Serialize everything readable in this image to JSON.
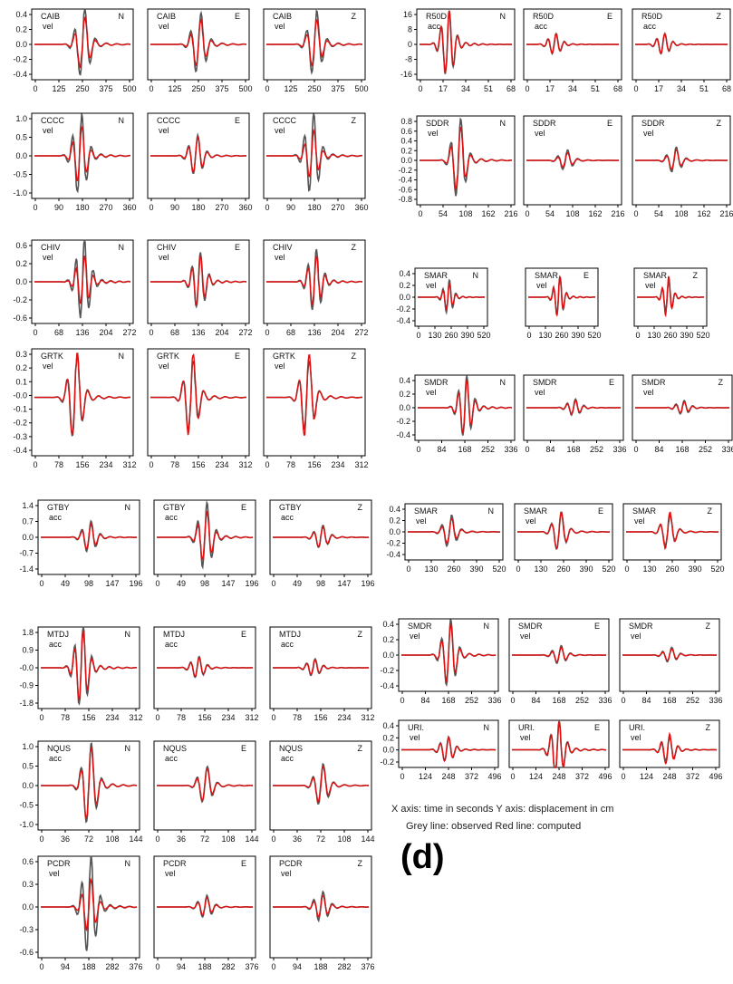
{
  "figure": {
    "caption_axes": "X axis: time in seconds   Y axis: displacement in cm",
    "caption_lines": "Grey line: observed     Red line: computed",
    "panel_letter": "(d)"
  },
  "colors": {
    "observed": "#555555",
    "computed": "#e01010",
    "frame": "#000000"
  },
  "chart_data": [
    {
      "type": "line",
      "station": "CAIB",
      "quantity": "vel",
      "yticks": [
        "0.4",
        "0.2",
        "0.0",
        "-0.2",
        "-0.4"
      ],
      "ylim": [
        -0.45,
        0.45
      ],
      "xticks": [
        "0",
        "125",
        "250",
        "375",
        "500"
      ],
      "xlim": [
        0,
        500
      ],
      "components": [
        "N",
        "E",
        "Z"
      ],
      "amp": [
        [
          0.42,
          0.33
        ],
        [
          0.38,
          0.3
        ],
        [
          0.4,
          0.3
        ]
      ],
      "center": 0.5
    },
    {
      "type": "line",
      "station": "CCCC",
      "quantity": "vel",
      "yticks": [
        "1.0",
        "0.5",
        "0.0",
        "-0.5",
        "-1.0"
      ],
      "ylim": [
        -1.1,
        1.1
      ],
      "xticks": [
        "0",
        "90",
        "180",
        "270",
        "360"
      ],
      "xlim": [
        0,
        360
      ],
      "components": [
        "N",
        "E",
        "Z"
      ],
      "amp": [
        [
          1.0,
          0.7
        ],
        [
          0.5,
          0.45
        ],
        [
          1.0,
          0.6
        ]
      ],
      "center": 0.47
    },
    {
      "type": "line",
      "station": "CHIV",
      "quantity": "vel",
      "yticks": [
        "0.6",
        "0.2",
        "0.0",
        "-0.2",
        "-0.6"
      ],
      "ylim": [
        -0.7,
        0.7
      ],
      "xticks": [
        "0",
        "68",
        "136",
        "204",
        "272"
      ],
      "xlim": [
        0,
        272
      ],
      "components": [
        "N",
        "E",
        "Z"
      ],
      "amp": [
        [
          0.65,
          0.4
        ],
        [
          0.45,
          0.4
        ],
        [
          0.5,
          0.4
        ]
      ],
      "center": 0.5
    },
    {
      "type": "line",
      "station": "GRTK",
      "quantity": "vel",
      "yticks": [
        "0.3",
        "0.2",
        "0.1",
        "-0.0",
        "-0.1",
        "-0.2",
        "-0.3",
        "-0.4"
      ],
      "ylim": [
        -0.42,
        0.35
      ],
      "xticks": [
        "0",
        "78",
        "156",
        "234",
        "312"
      ],
      "xlim": [
        0,
        312
      ],
      "components": [
        "N",
        "E",
        "Z"
      ],
      "amp": [
        [
          0.3,
          0.3
        ],
        [
          0.25,
          0.3
        ],
        [
          0.25,
          0.3
        ]
      ],
      "center": 0.42
    },
    {
      "type": "line",
      "station": "GTBY",
      "quantity": "acc",
      "yticks": [
        "1.4",
        "0.7",
        "0.0",
        "-0.7",
        "-1.4"
      ],
      "ylim": [
        -1.5,
        1.5
      ],
      "xticks": [
        "0",
        "49",
        "98",
        "147",
        "196"
      ],
      "xlim": [
        0,
        196
      ],
      "components": [
        "N",
        "E",
        "Z"
      ],
      "amp": [
        [
          0.6,
          0.5
        ],
        [
          1.3,
          1.0
        ],
        [
          0.45,
          0.4
        ]
      ],
      "center": 0.5
    },
    {
      "type": "line",
      "station": "MTDJ",
      "quantity": "acc",
      "yticks": [
        "1.8",
        "0.9",
        "-0.0",
        "-0.9",
        "-1.8"
      ],
      "ylim": [
        -2.0,
        2.0
      ],
      "xticks": [
        "0",
        "78",
        "156",
        "234",
        "312"
      ],
      "xlim": [
        0,
        312
      ],
      "components": [
        "N",
        "E",
        "Z"
      ],
      "amp": [
        [
          1.9,
          1.7
        ],
        [
          0.5,
          0.45
        ],
        [
          0.4,
          0.35
        ]
      ],
      "center": 0.42
    },
    {
      "type": "line",
      "station": "NQUS",
      "quantity": "acc",
      "yticks": [
        "1.0",
        "0.5",
        "0.0",
        "-0.5",
        "-1.0"
      ],
      "ylim": [
        -1.1,
        1.1
      ],
      "xticks": [
        "0",
        "36",
        "72",
        "108",
        "144"
      ],
      "xlim": [
        0,
        144
      ],
      "components": [
        "N",
        "E",
        "Z"
      ],
      "amp": [
        [
          1.0,
          0.9
        ],
        [
          0.45,
          0.4
        ],
        [
          0.5,
          0.45
        ]
      ],
      "center": 0.5
    },
    {
      "type": "line",
      "station": "PCDR",
      "quantity": "vel",
      "yticks": [
        "0.6",
        "0.3",
        "0.0",
        "-0.3",
        "-0.6"
      ],
      "ylim": [
        -0.7,
        0.7
      ],
      "xticks": [
        "0",
        "94",
        "188",
        "282",
        "376"
      ],
      "xlim": [
        0,
        376
      ],
      "components": [
        "N",
        "E",
        "Z"
      ],
      "amp": [
        [
          0.65,
          0.35
        ],
        [
          0.15,
          0.12
        ],
        [
          0.2,
          0.15
        ]
      ],
      "center": 0.5
    },
    {
      "type": "line",
      "station": "R50D",
      "quantity": "acc",
      "yticks": [
        "16",
        "8",
        "0",
        "-8",
        "-16"
      ],
      "ylim": [
        -18,
        18
      ],
      "xticks": [
        "0",
        "17",
        "34",
        "51",
        "68"
      ],
      "xlim": [
        0,
        68
      ],
      "components": [
        "N",
        "E",
        "Z"
      ],
      "amp": [
        [
          16,
          16
        ],
        [
          5,
          5
        ],
        [
          5,
          5
        ]
      ],
      "center": 0.3
    },
    {
      "type": "line",
      "station": "SDDR",
      "quantity": "vel",
      "yticks": [
        "0.8",
        "0.6",
        "0.4",
        "0.2",
        "0.0",
        "-0.2",
        "-0.4",
        "-0.6",
        "-0.8"
      ],
      "ylim": [
        -0.9,
        0.9
      ],
      "xticks": [
        "0",
        "54",
        "108",
        "162",
        "216"
      ],
      "xlim": [
        0,
        216
      ],
      "components": [
        "N",
        "E",
        "Z"
      ],
      "amp": [
        [
          0.8,
          0.65
        ],
        [
          0.2,
          0.15
        ],
        [
          0.25,
          0.2
        ]
      ],
      "center": 0.42
    },
    {
      "type": "line",
      "station": "SMAR",
      "quantity": "vel",
      "yticks": [
        "0.4",
        "0.2",
        "0.0",
        "-0.2",
        "-0.4"
      ],
      "ylim": [
        -0.45,
        0.45
      ],
      "xticks": [
        "0",
        "130",
        "260",
        "390",
        "520"
      ],
      "xlim": [
        0,
        520
      ],
      "components": [
        "N",
        "E",
        "Z"
      ],
      "amp": [
        [
          0.25,
          0.2
        ],
        [
          0.3,
          0.3
        ],
        [
          0.25,
          0.3
        ]
      ],
      "center": 0.45
    },
    {
      "type": "line",
      "station": "SMDR",
      "quantity": "vel",
      "yticks": [
        "0.4",
        "0.2",
        "0.0",
        "-0.2",
        "-0.4"
      ],
      "ylim": [
        -0.5,
        0.5
      ],
      "xticks": [
        "0",
        "84",
        "168",
        "252",
        "336"
      ],
      "xlim": [
        0,
        336
      ],
      "components": [
        "N",
        "E",
        "Z"
      ],
      "amp": [
        [
          0.45,
          0.4
        ],
        [
          0.12,
          0.1
        ],
        [
          0.1,
          0.08
        ]
      ],
      "center": 0.5
    },
    {
      "type": "line",
      "station": "SMAR",
      "quantity": "vel",
      "yticks": [
        "0.4",
        "0.2",
        "0.0",
        "-0.2",
        "-0.4"
      ],
      "ylim": [
        -0.45,
        0.45
      ],
      "xticks": [
        "0",
        "130",
        "260",
        "390",
        "520"
      ],
      "xlim": [
        0,
        520
      ],
      "components": [
        "N",
        "E",
        "Z"
      ],
      "amp": [
        [
          0.25,
          0.2
        ],
        [
          0.3,
          0.3
        ],
        [
          0.25,
          0.3
        ]
      ],
      "center": 0.45
    },
    {
      "type": "line",
      "station": "SMDR",
      "quantity": "vel",
      "yticks": [
        "0.4",
        "0.2",
        "0.0",
        "-0.2",
        "-0.4"
      ],
      "ylim": [
        -0.5,
        0.5
      ],
      "xticks": [
        "0",
        "84",
        "168",
        "252",
        "336"
      ],
      "xlim": [
        0,
        336
      ],
      "components": [
        "N",
        "E",
        "Z"
      ],
      "amp": [
        [
          0.45,
          0.4
        ],
        [
          0.12,
          0.1
        ],
        [
          0.1,
          0.08
        ]
      ],
      "center": 0.5
    },
    {
      "type": "line",
      "station": "URI.",
      "quantity": "vel",
      "yticks": [
        "0.4",
        "0.2",
        "0.0",
        "-0.2"
      ],
      "ylim": [
        -0.3,
        0.5
      ],
      "xticks": [
        "0",
        "124",
        "248",
        "372",
        "496"
      ],
      "xlim": [
        0,
        496
      ],
      "components": [
        "N",
        "E",
        "Z"
      ],
      "amp": [
        [
          0.2,
          0.2
        ],
        [
          0.45,
          0.45
        ],
        [
          0.2,
          0.25
        ]
      ],
      "center": 0.48
    }
  ]
}
